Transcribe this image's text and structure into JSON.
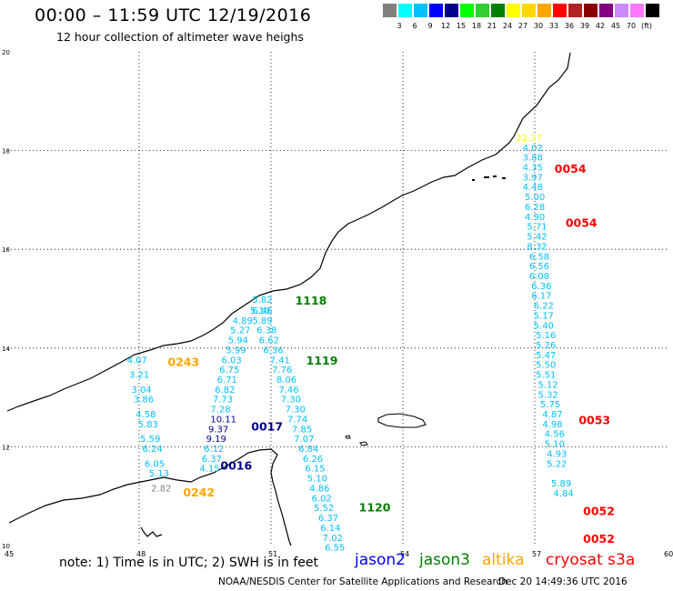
{
  "header": {
    "title": "00:00 – 11:59 UTC 12/19/2016",
    "subtitle": "12 hour collection of altimeter wave heighs"
  },
  "colorbar": {
    "colors": [
      "#808080",
      "#00ffff",
      "#00bfff",
      "#0000ff",
      "#00008b",
      "#00ff00",
      "#32cd32",
      "#008000",
      "#ffff00",
      "#ffd700",
      "#ffa500",
      "#ff0000",
      "#b22222",
      "#8b0000",
      "#800080",
      "#cc88ff",
      "#ff77ff",
      "#000000"
    ],
    "labels": [
      "3",
      "6",
      "9",
      "12",
      "15",
      "18",
      "21",
      "24",
      "27",
      "30",
      "33",
      "36",
      "39",
      "42",
      "45",
      "70",
      "(ft)"
    ]
  },
  "map": {
    "lon_ticks": [
      "45",
      "48",
      "51",
      "54",
      "57",
      "60"
    ],
    "lat_ticks": [
      "20",
      "18",
      "16",
      "14",
      "12",
      "10"
    ]
  },
  "tracks": [
    {
      "id": "jason3-1118",
      "color": "#008000",
      "label": "1118",
      "points": [
        {
          "lon": 50.8,
          "lat": 14.99,
          "v": "5.82",
          "c": "#00bfff"
        },
        {
          "lon": 50.8,
          "lat": 14.77,
          "v": "6.46",
          "c": "#00bfff"
        },
        {
          "lon": 50.8,
          "lat": 14.57,
          "v": "5.89",
          "c": "#00bfff"
        },
        {
          "lon": 50.9,
          "lat": 14.37,
          "v": "6.38",
          "c": "#00bfff"
        },
        {
          "lon": 50.95,
          "lat": 14.17,
          "v": "6.62",
          "c": "#00bfff"
        },
        {
          "lon": 51.05,
          "lat": 13.97,
          "v": "6.36",
          "c": "#00bfff"
        },
        {
          "lon": 51.2,
          "lat": 13.77,
          "v": "7.41",
          "c": "#00bfff"
        },
        {
          "lon": 51.25,
          "lat": 13.57,
          "v": "7.76",
          "c": "#00bfff"
        },
        {
          "lon": 51.35,
          "lat": 13.37,
          "v": "8.06",
          "c": "#00bfff"
        },
        {
          "lon": 51.4,
          "lat": 13.17,
          "v": "7.46",
          "c": "#00bfff"
        },
        {
          "lon": 51.45,
          "lat": 12.97,
          "v": "7.30",
          "c": "#00bfff"
        },
        {
          "lon": 51.55,
          "lat": 12.77,
          "v": "7.30",
          "c": "#00bfff"
        },
        {
          "lon": 51.6,
          "lat": 12.57,
          "v": "7.74",
          "c": "#00bfff"
        },
        {
          "lon": 51.7,
          "lat": 12.37,
          "v": "7.85",
          "c": "#00bfff"
        },
        {
          "lon": 51.75,
          "lat": 12.17,
          "v": "7.07",
          "c": "#00bfff"
        },
        {
          "lon": 51.85,
          "lat": 11.97,
          "v": "6.84",
          "c": "#00bfff"
        },
        {
          "lon": 51.95,
          "lat": 11.77,
          "v": "6.26",
          "c": "#00bfff"
        },
        {
          "lon": 52.0,
          "lat": 11.57,
          "v": "6.15",
          "c": "#00bfff"
        },
        {
          "lon": 52.05,
          "lat": 11.37,
          "v": "5.10",
          "c": "#00bfff"
        },
        {
          "lon": 52.1,
          "lat": 11.17,
          "v": "4.86",
          "c": "#00bfff"
        },
        {
          "lon": 52.15,
          "lat": 10.97,
          "v": "6.02",
          "c": "#00bfff"
        },
        {
          "lon": 52.2,
          "lat": 10.77,
          "v": "5.52",
          "c": "#00bfff"
        },
        {
          "lon": 52.3,
          "lat": 10.57,
          "v": "6.37",
          "c": "#00bfff"
        },
        {
          "lon": 52.35,
          "lat": 10.37,
          "v": "6.14",
          "c": "#00bfff"
        },
        {
          "lon": 52.4,
          "lat": 10.17,
          "v": "7.02",
          "c": "#00bfff"
        },
        {
          "lon": 52.45,
          "lat": 9.97,
          "v": "6.55",
          "c": "#00bfff"
        }
      ]
    },
    {
      "id": "jason2-0017",
      "color": "#00008b",
      "label": "0017",
      "points": [
        {
          "lon": 50.75,
          "lat": 14.77,
          "v": "5.10",
          "c": "#00bfff"
        },
        {
          "lon": 50.35,
          "lat": 14.57,
          "v": "4.89",
          "c": "#00bfff"
        },
        {
          "lon": 50.3,
          "lat": 14.37,
          "v": "5.27",
          "c": "#00bfff"
        },
        {
          "lon": 50.25,
          "lat": 14.17,
          "v": "5.94",
          "c": "#00bfff"
        },
        {
          "lon": 50.2,
          "lat": 13.97,
          "v": "5.99",
          "c": "#00bfff"
        },
        {
          "lon": 50.1,
          "lat": 13.77,
          "v": "6.03",
          "c": "#00bfff"
        },
        {
          "lon": 50.05,
          "lat": 13.57,
          "v": "6.75",
          "c": "#00bfff"
        },
        {
          "lon": 50.0,
          "lat": 13.37,
          "v": "6.71",
          "c": "#00bfff"
        },
        {
          "lon": 49.95,
          "lat": 13.17,
          "v": "6.82",
          "c": "#00bfff"
        },
        {
          "lon": 49.9,
          "lat": 12.97,
          "v": "7.73",
          "c": "#00bfff"
        },
        {
          "lon": 49.85,
          "lat": 12.77,
          "v": "7.28",
          "c": "#00bfff"
        },
        {
          "lon": 49.85,
          "lat": 12.57,
          "v": "10.11",
          "c": "#00008b"
        },
        {
          "lon": 49.8,
          "lat": 12.37,
          "v": "9.37",
          "c": "#00008b"
        },
        {
          "lon": 49.75,
          "lat": 12.17,
          "v": "9.19",
          "c": "#00008b"
        },
        {
          "lon": 49.7,
          "lat": 11.97,
          "v": "6.12",
          "c": "#00bfff"
        },
        {
          "lon": 49.65,
          "lat": 11.77,
          "v": "6.37",
          "c": "#00bfff"
        },
        {
          "lon": 49.6,
          "lat": 11.57,
          "v": "4.15",
          "c": "#00bfff"
        }
      ]
    },
    {
      "id": "altika-0243",
      "color": "#ffa500",
      "label": "0243",
      "points": [
        {
          "lon": 47.95,
          "lat": 13.77,
          "v": "4.07",
          "c": "#00bfff"
        },
        {
          "lon": 48.0,
          "lat": 13.47,
          "v": "3.21",
          "c": "#00bfff"
        },
        {
          "lon": 48.05,
          "lat": 13.17,
          "v": "3.04",
          "c": "#00bfff"
        },
        {
          "lon": 48.1,
          "lat": 12.97,
          "v": "3.86",
          "c": "#00bfff"
        },
        {
          "lon": 48.15,
          "lat": 12.67,
          "v": "4.58",
          "c": "#00bfff"
        },
        {
          "lon": 48.2,
          "lat": 12.47,
          "v": "5.83",
          "c": "#00bfff"
        },
        {
          "lon": 48.25,
          "lat": 12.17,
          "v": "5.59",
          "c": "#00bfff"
        },
        {
          "lon": 48.3,
          "lat": 11.97,
          "v": "6.24",
          "c": "#00bfff"
        },
        {
          "lon": 48.35,
          "lat": 11.67,
          "v": "6.05",
          "c": "#00bfff"
        },
        {
          "lon": 48.45,
          "lat": 11.47,
          "v": "5.13",
          "c": "#00bfff"
        },
        {
          "lon": 48.5,
          "lat": 11.17,
          "v": "2.82",
          "c": "#808080"
        }
      ]
    },
    {
      "id": "cryosat-0054",
      "color": "#ff0000",
      "label": "0054",
      "points": [
        {
          "lon": 56.8,
          "lat": 18.27,
          "v": "22.37",
          "c": "#ffff00"
        },
        {
          "lon": 56.95,
          "lat": 18.07,
          "v": "4.02",
          "c": "#00bfff"
        },
        {
          "lon": 56.95,
          "lat": 17.87,
          "v": "3.88",
          "c": "#00bfff"
        },
        {
          "lon": 56.95,
          "lat": 17.67,
          "v": "4.35",
          "c": "#00bfff"
        },
        {
          "lon": 56.95,
          "lat": 17.47,
          "v": "3.97",
          "c": "#00bfff"
        },
        {
          "lon": 56.95,
          "lat": 17.27,
          "v": "4.48",
          "c": "#00bfff"
        },
        {
          "lon": 57.0,
          "lat": 17.07,
          "v": "5.00",
          "c": "#00bfff"
        },
        {
          "lon": 57.0,
          "lat": 16.87,
          "v": "6.28",
          "c": "#00bfff"
        },
        {
          "lon": 57.0,
          "lat": 16.67,
          "v": "4.90",
          "c": "#00bfff"
        },
        {
          "lon": 57.05,
          "lat": 16.47,
          "v": "5.71",
          "c": "#00bfff"
        },
        {
          "lon": 57.05,
          "lat": 16.27,
          "v": "5.42",
          "c": "#00bfff"
        },
        {
          "lon": 57.05,
          "lat": 16.07,
          "v": "8.32",
          "c": "#00bfff"
        },
        {
          "lon": 57.1,
          "lat": 15.87,
          "v": "6.58",
          "c": "#00bfff"
        },
        {
          "lon": 57.1,
          "lat": 15.67,
          "v": "6.56",
          "c": "#00bfff"
        },
        {
          "lon": 57.1,
          "lat": 15.47,
          "v": "6.08",
          "c": "#00bfff"
        },
        {
          "lon": 57.15,
          "lat": 15.27,
          "v": "6.36",
          "c": "#00bfff"
        },
        {
          "lon": 57.15,
          "lat": 15.07,
          "v": "6.17",
          "c": "#00bfff"
        },
        {
          "lon": 57.2,
          "lat": 14.87,
          "v": "6.22",
          "c": "#00bfff"
        },
        {
          "lon": 57.2,
          "lat": 14.67,
          "v": "5.17",
          "c": "#00bfff"
        },
        {
          "lon": 57.2,
          "lat": 14.47,
          "v": "5.40",
          "c": "#00bfff"
        },
        {
          "lon": 57.25,
          "lat": 14.27,
          "v": "5.16",
          "c": "#00bfff"
        },
        {
          "lon": 57.25,
          "lat": 14.07,
          "v": "5.26",
          "c": "#00bfff"
        },
        {
          "lon": 57.25,
          "lat": 13.87,
          "v": "5.47",
          "c": "#00bfff"
        },
        {
          "lon": 57.25,
          "lat": 13.67,
          "v": "5.50",
          "c": "#00bfff"
        },
        {
          "lon": 57.25,
          "lat": 13.47,
          "v": "5.51",
          "c": "#00bfff"
        },
        {
          "lon": 57.3,
          "lat": 13.27,
          "v": "5.12",
          "c": "#00bfff"
        },
        {
          "lon": 57.3,
          "lat": 13.07,
          "v": "5.32",
          "c": "#00bfff"
        },
        {
          "lon": 57.35,
          "lat": 12.87,
          "v": "5.75",
          "c": "#00bfff"
        },
        {
          "lon": 57.4,
          "lat": 12.67,
          "v": "4.87",
          "c": "#00bfff"
        },
        {
          "lon": 57.4,
          "lat": 12.47,
          "v": "4.98",
          "c": "#00bfff"
        },
        {
          "lon": 57.45,
          "lat": 12.27,
          "v": "4.56",
          "c": "#00bfff"
        },
        {
          "lon": 57.45,
          "lat": 12.07,
          "v": "5.10",
          "c": "#00bfff"
        },
        {
          "lon": 57.5,
          "lat": 11.87,
          "v": "4.93",
          "c": "#00bfff"
        },
        {
          "lon": 57.5,
          "lat": 11.67,
          "v": "5.22",
          "c": "#00bfff"
        },
        {
          "lon": 57.6,
          "lat": 11.27,
          "v": "5.89",
          "c": "#00bfff"
        },
        {
          "lon": 57.65,
          "lat": 11.07,
          "v": "4.84",
          "c": "#00bfff"
        }
      ]
    }
  ],
  "pass_labels": [
    {
      "text": "1118",
      "color": "#008000",
      "lon": 51.55,
      "lat": 14.97
    },
    {
      "text": "1119",
      "color": "#008000",
      "lon": 51.8,
      "lat": 13.76
    },
    {
      "text": "0017",
      "color": "#00008b",
      "lon": 50.55,
      "lat": 12.42
    },
    {
      "text": "0016",
      "color": "#00008b",
      "lon": 49.85,
      "lat": 11.63
    },
    {
      "text": "0243",
      "color": "#ffa500",
      "lon": 48.65,
      "lat": 13.73
    },
    {
      "text": "0242",
      "color": "#ffa500",
      "lon": 49.0,
      "lat": 11.09
    },
    {
      "text": "1120",
      "color": "#008000",
      "lon": 53.0,
      "lat": 10.78
    },
    {
      "text": "0054",
      "color": "#ff0000",
      "lon": 57.45,
      "lat": 17.64
    },
    {
      "text": "0054",
      "color": "#ff0000",
      "lon": 57.7,
      "lat": 16.55
    },
    {
      "text": "0053",
      "color": "#ff0000",
      "lon": 58.0,
      "lat": 12.55
    },
    {
      "text": "0052",
      "color": "#ff0000",
      "lon": 58.1,
      "lat": 10.71
    },
    {
      "text": "0052",
      "color": "#ff0000",
      "lon": 58.1,
      "lat": 10.15
    }
  ],
  "note": "note: 1) Time is in UTC; 2) SWH is in feet",
  "legend": [
    {
      "name": "jason2",
      "color": "#0000ff"
    },
    {
      "name": "jason3",
      "color": "#008000"
    },
    {
      "name": "altika",
      "color": "#ffa500"
    },
    {
      "name": "cryosat s3a",
      "color": "#ff0000"
    }
  ],
  "footer": {
    "credit": "NOAA/NESDIS Center for Satellite Applications and Research",
    "date": "Dec 20 14:49:36 UTC 2016"
  }
}
